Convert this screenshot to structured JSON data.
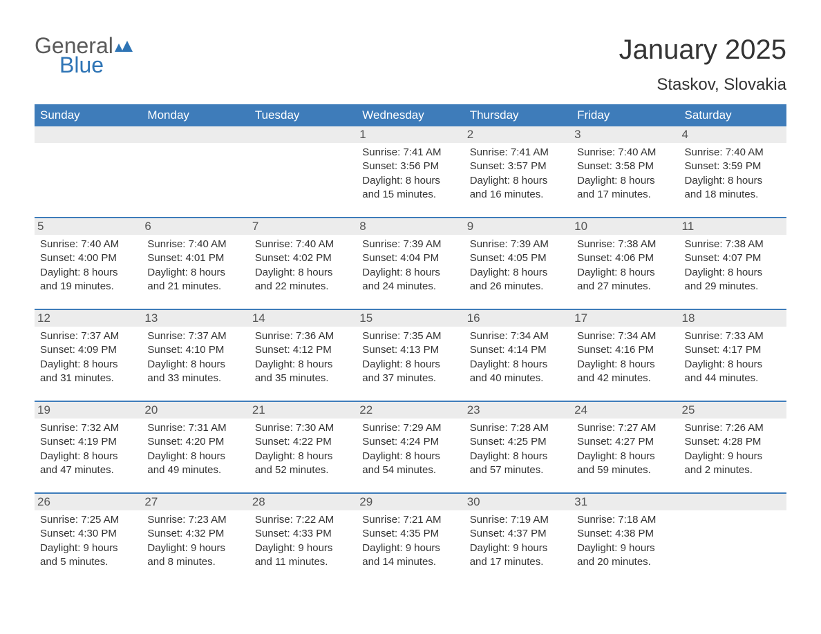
{
  "brand": {
    "word1": "General",
    "word2": "Blue",
    "color_text": "#5a5a5a",
    "color_blue": "#2e74b5"
  },
  "title": "January 2025",
  "location": "Staskov, Slovakia",
  "header_bg": "#3e7cba",
  "header_fg": "#ffffff",
  "stripe_bg": "#ececec",
  "page_bg": "#ffffff",
  "text_color": "#333333",
  "title_fontsize": 40,
  "location_fontsize": 24,
  "header_fontsize": 17,
  "cell_fontsize": 15,
  "weekdays": [
    "Sunday",
    "Monday",
    "Tuesday",
    "Wednesday",
    "Thursday",
    "Friday",
    "Saturday"
  ],
  "weeks": [
    [
      null,
      null,
      null,
      {
        "n": "1",
        "sunrise": "Sunrise: 7:41 AM",
        "sunset": "Sunset: 3:56 PM",
        "d1": "Daylight: 8 hours",
        "d2": "and 15 minutes."
      },
      {
        "n": "2",
        "sunrise": "Sunrise: 7:41 AM",
        "sunset": "Sunset: 3:57 PM",
        "d1": "Daylight: 8 hours",
        "d2": "and 16 minutes."
      },
      {
        "n": "3",
        "sunrise": "Sunrise: 7:40 AM",
        "sunset": "Sunset: 3:58 PM",
        "d1": "Daylight: 8 hours",
        "d2": "and 17 minutes."
      },
      {
        "n": "4",
        "sunrise": "Sunrise: 7:40 AM",
        "sunset": "Sunset: 3:59 PM",
        "d1": "Daylight: 8 hours",
        "d2": "and 18 minutes."
      }
    ],
    [
      {
        "n": "5",
        "sunrise": "Sunrise: 7:40 AM",
        "sunset": "Sunset: 4:00 PM",
        "d1": "Daylight: 8 hours",
        "d2": "and 19 minutes."
      },
      {
        "n": "6",
        "sunrise": "Sunrise: 7:40 AM",
        "sunset": "Sunset: 4:01 PM",
        "d1": "Daylight: 8 hours",
        "d2": "and 21 minutes."
      },
      {
        "n": "7",
        "sunrise": "Sunrise: 7:40 AM",
        "sunset": "Sunset: 4:02 PM",
        "d1": "Daylight: 8 hours",
        "d2": "and 22 minutes."
      },
      {
        "n": "8",
        "sunrise": "Sunrise: 7:39 AM",
        "sunset": "Sunset: 4:04 PM",
        "d1": "Daylight: 8 hours",
        "d2": "and 24 minutes."
      },
      {
        "n": "9",
        "sunrise": "Sunrise: 7:39 AM",
        "sunset": "Sunset: 4:05 PM",
        "d1": "Daylight: 8 hours",
        "d2": "and 26 minutes."
      },
      {
        "n": "10",
        "sunrise": "Sunrise: 7:38 AM",
        "sunset": "Sunset: 4:06 PM",
        "d1": "Daylight: 8 hours",
        "d2": "and 27 minutes."
      },
      {
        "n": "11",
        "sunrise": "Sunrise: 7:38 AM",
        "sunset": "Sunset: 4:07 PM",
        "d1": "Daylight: 8 hours",
        "d2": "and 29 minutes."
      }
    ],
    [
      {
        "n": "12",
        "sunrise": "Sunrise: 7:37 AM",
        "sunset": "Sunset: 4:09 PM",
        "d1": "Daylight: 8 hours",
        "d2": "and 31 minutes."
      },
      {
        "n": "13",
        "sunrise": "Sunrise: 7:37 AM",
        "sunset": "Sunset: 4:10 PM",
        "d1": "Daylight: 8 hours",
        "d2": "and 33 minutes."
      },
      {
        "n": "14",
        "sunrise": "Sunrise: 7:36 AM",
        "sunset": "Sunset: 4:12 PM",
        "d1": "Daylight: 8 hours",
        "d2": "and 35 minutes."
      },
      {
        "n": "15",
        "sunrise": "Sunrise: 7:35 AM",
        "sunset": "Sunset: 4:13 PM",
        "d1": "Daylight: 8 hours",
        "d2": "and 37 minutes."
      },
      {
        "n": "16",
        "sunrise": "Sunrise: 7:34 AM",
        "sunset": "Sunset: 4:14 PM",
        "d1": "Daylight: 8 hours",
        "d2": "and 40 minutes."
      },
      {
        "n": "17",
        "sunrise": "Sunrise: 7:34 AM",
        "sunset": "Sunset: 4:16 PM",
        "d1": "Daylight: 8 hours",
        "d2": "and 42 minutes."
      },
      {
        "n": "18",
        "sunrise": "Sunrise: 7:33 AM",
        "sunset": "Sunset: 4:17 PM",
        "d1": "Daylight: 8 hours",
        "d2": "and 44 minutes."
      }
    ],
    [
      {
        "n": "19",
        "sunrise": "Sunrise: 7:32 AM",
        "sunset": "Sunset: 4:19 PM",
        "d1": "Daylight: 8 hours",
        "d2": "and 47 minutes."
      },
      {
        "n": "20",
        "sunrise": "Sunrise: 7:31 AM",
        "sunset": "Sunset: 4:20 PM",
        "d1": "Daylight: 8 hours",
        "d2": "and 49 minutes."
      },
      {
        "n": "21",
        "sunrise": "Sunrise: 7:30 AM",
        "sunset": "Sunset: 4:22 PM",
        "d1": "Daylight: 8 hours",
        "d2": "and 52 minutes."
      },
      {
        "n": "22",
        "sunrise": "Sunrise: 7:29 AM",
        "sunset": "Sunset: 4:24 PM",
        "d1": "Daylight: 8 hours",
        "d2": "and 54 minutes."
      },
      {
        "n": "23",
        "sunrise": "Sunrise: 7:28 AM",
        "sunset": "Sunset: 4:25 PM",
        "d1": "Daylight: 8 hours",
        "d2": "and 57 minutes."
      },
      {
        "n": "24",
        "sunrise": "Sunrise: 7:27 AM",
        "sunset": "Sunset: 4:27 PM",
        "d1": "Daylight: 8 hours",
        "d2": "and 59 minutes."
      },
      {
        "n": "25",
        "sunrise": "Sunrise: 7:26 AM",
        "sunset": "Sunset: 4:28 PM",
        "d1": "Daylight: 9 hours",
        "d2": "and 2 minutes."
      }
    ],
    [
      {
        "n": "26",
        "sunrise": "Sunrise: 7:25 AM",
        "sunset": "Sunset: 4:30 PM",
        "d1": "Daylight: 9 hours",
        "d2": "and 5 minutes."
      },
      {
        "n": "27",
        "sunrise": "Sunrise: 7:23 AM",
        "sunset": "Sunset: 4:32 PM",
        "d1": "Daylight: 9 hours",
        "d2": "and 8 minutes."
      },
      {
        "n": "28",
        "sunrise": "Sunrise: 7:22 AM",
        "sunset": "Sunset: 4:33 PM",
        "d1": "Daylight: 9 hours",
        "d2": "and 11 minutes."
      },
      {
        "n": "29",
        "sunrise": "Sunrise: 7:21 AM",
        "sunset": "Sunset: 4:35 PM",
        "d1": "Daylight: 9 hours",
        "d2": "and 14 minutes."
      },
      {
        "n": "30",
        "sunrise": "Sunrise: 7:19 AM",
        "sunset": "Sunset: 4:37 PM",
        "d1": "Daylight: 9 hours",
        "d2": "and 17 minutes."
      },
      {
        "n": "31",
        "sunrise": "Sunrise: 7:18 AM",
        "sunset": "Sunset: 4:38 PM",
        "d1": "Daylight: 9 hours",
        "d2": "and 20 minutes."
      },
      null
    ]
  ]
}
